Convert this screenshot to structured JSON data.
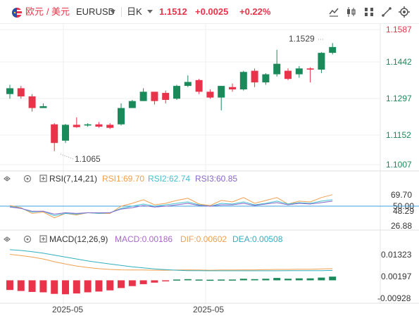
{
  "header": {
    "pair_name": "欧元",
    "pair_separator": "/",
    "pair_quote": "美元",
    "symbol": "EURUSD",
    "period": "日K",
    "last_price": "1.1512",
    "change": "+0.0025",
    "change_pct": "+0.22%",
    "tools": [
      "line-tool-icon",
      "candle-type-icon",
      "indicator-icon",
      "draw-tool-icon",
      "settings-icon"
    ]
  },
  "main_chart": {
    "price_labels": [
      "1.1587",
      "1.1442",
      "1.1297",
      "1.1152",
      "1.1007"
    ],
    "high_marker": "1.1529",
    "low_marker": "1.1065"
  },
  "rsi": {
    "label": "RSI(7,14,21)",
    "rsi1": "RSI1:69.70",
    "rsi2": "RSI2:62.74",
    "rsi3": "RSI3:60.85",
    "axis_labels": [
      "69.70",
      "50.00",
      "48.29",
      "26.88"
    ]
  },
  "macd": {
    "label": "MACD(12,26,9)",
    "macd": "MACD:0.00186",
    "dif": "DIF:0.00602",
    "dea": "DEA:0.00508",
    "axis_labels": [
      "0.01323",
      "0.00197",
      "-0.00928"
    ]
  },
  "date_labels": [
    "2025-05",
    "2025-05"
  ],
  "colors": {
    "up": "#1a8a5a",
    "down": "#e8334a",
    "rsi1": "#f0a050",
    "rsi2": "#40c0d0",
    "rsi3": "#8866cc",
    "macd": "#aa66cc",
    "dif": "#f0a050",
    "dea": "#30b0c0",
    "axis_text": "#1a8a5a"
  },
  "chart_data": {
    "type": "candlestick",
    "candles": [
      {
        "o": 1.131,
        "h": 1.135,
        "l": 1.129,
        "c": 1.1335
      },
      {
        "o": 1.1335,
        "h": 1.1345,
        "l": 1.129,
        "c": 1.13
      },
      {
        "o": 1.13,
        "h": 1.131,
        "l": 1.1235,
        "c": 1.125
      },
      {
        "o": 1.125,
        "h": 1.127,
        "l": 1.125,
        "c": 1.1258
      },
      {
        "o": 1.118,
        "h": 1.1185,
        "l": 1.1065,
        "c": 1.11
      },
      {
        "o": 1.111,
        "h": 1.1182,
        "l": 1.11,
        "c": 1.1178
      },
      {
        "o": 1.1178,
        "h": 1.121,
        "l": 1.1165,
        "c": 1.1168
      },
      {
        "o": 1.1175,
        "h": 1.1185,
        "l": 1.117,
        "c": 1.118
      },
      {
        "o": 1.118,
        "h": 1.119,
        "l": 1.1165,
        "c": 1.117
      },
      {
        "o": 1.1178,
        "h": 1.1185,
        "l": 1.116,
        "c": 1.1165
      },
      {
        "o": 1.118,
        "h": 1.127,
        "l": 1.1175,
        "c": 1.125
      },
      {
        "o": 1.125,
        "h": 1.1285,
        "l": 1.125,
        "c": 1.128
      },
      {
        "o": 1.128,
        "h": 1.1335,
        "l": 1.128,
        "c": 1.132
      },
      {
        "o": 1.132,
        "h": 1.132,
        "l": 1.1265,
        "c": 1.128
      },
      {
        "o": 1.1315,
        "h": 1.1325,
        "l": 1.127,
        "c": 1.1285
      },
      {
        "o": 1.129,
        "h": 1.135,
        "l": 1.1285,
        "c": 1.1345
      },
      {
        "o": 1.1345,
        "h": 1.139,
        "l": 1.134,
        "c": 1.1362
      },
      {
        "o": 1.137,
        "h": 1.1375,
        "l": 1.131,
        "c": 1.132
      },
      {
        "o": 1.132,
        "h": 1.133,
        "l": 1.129,
        "c": 1.1295
      },
      {
        "o": 1.1295,
        "h": 1.1345,
        "l": 1.124,
        "c": 1.1345
      },
      {
        "o": 1.134,
        "h": 1.1355,
        "l": 1.132,
        "c": 1.133
      },
      {
        "o": 1.133,
        "h": 1.141,
        "l": 1.1325,
        "c": 1.1405
      },
      {
        "o": 1.141,
        "h": 1.142,
        "l": 1.134,
        "c": 1.136
      },
      {
        "o": 1.136,
        "h": 1.14,
        "l": 1.135,
        "c": 1.1395
      },
      {
        "o": 1.1395,
        "h": 1.15,
        "l": 1.1385,
        "c": 1.144
      },
      {
        "o": 1.141,
        "h": 1.142,
        "l": 1.137,
        "c": 1.1375
      },
      {
        "o": 1.1395,
        "h": 1.143,
        "l": 1.138,
        "c": 1.142
      },
      {
        "o": 1.142,
        "h": 1.1425,
        "l": 1.136,
        "c": 1.1415
      },
      {
        "o": 1.1415,
        "h": 1.149,
        "l": 1.14,
        "c": 1.1487
      },
      {
        "o": 1.1487,
        "h": 1.1529,
        "l": 1.148,
        "c": 1.1512
      }
    ],
    "rsi1": [
      55,
      52,
      44,
      46,
      38,
      44,
      42,
      45,
      44,
      44,
      54,
      58,
      63,
      56,
      58,
      62,
      65,
      57,
      55,
      62,
      60,
      66,
      58,
      62,
      66,
      57,
      61,
      60,
      66,
      70
    ],
    "rsi2": [
      54,
      51,
      46,
      47,
      41,
      44,
      43,
      45,
      44,
      45,
      51,
      54,
      57,
      54,
      56,
      58,
      60,
      56,
      54,
      58,
      57,
      60,
      56,
      58,
      61,
      57,
      59,
      58,
      61,
      63
    ],
    "rsi3": [
      53,
      51,
      47,
      47,
      43,
      45,
      44,
      45,
      45,
      45,
      50,
      52,
      55,
      53,
      54,
      56,
      58,
      55,
      54,
      56,
      56,
      58,
      55,
      57,
      59,
      56,
      58,
      57,
      59,
      61
    ],
    "macd_hist": [
      -0.005,
      -0.0055,
      -0.006,
      -0.0062,
      -0.007,
      -0.0072,
      -0.0068,
      -0.0062,
      -0.0058,
      -0.0052,
      -0.004,
      -0.003,
      -0.002,
      -0.0012,
      -0.0004,
      0.0004,
      0.0006,
      0.0004,
      0.0003,
      0.0004,
      0.0004,
      0.0008,
      0.0006,
      0.0008,
      0.0012,
      0.0008,
      0.001,
      0.001,
      0.0014,
      0.0019
    ],
    "dif": [
      0.0134,
      0.0128,
      0.012,
      0.011,
      0.0096,
      0.0084,
      0.0074,
      0.0066,
      0.006,
      0.0056,
      0.0054,
      0.0053,
      0.0053,
      0.0052,
      0.0052,
      0.0053,
      0.0054,
      0.0053,
      0.0052,
      0.0053,
      0.0053,
      0.0054,
      0.0054,
      0.0055,
      0.0056,
      0.0056,
      0.0057,
      0.0057,
      0.0059,
      0.006
    ],
    "dea": [
      0.0158,
      0.0154,
      0.0148,
      0.014,
      0.013,
      0.012,
      0.011,
      0.01,
      0.0092,
      0.0084,
      0.0077,
      0.007,
      0.0064,
      0.0059,
      0.0055,
      0.0052,
      0.005,
      0.005,
      0.0049,
      0.0049,
      0.0049,
      0.0049,
      0.0049,
      0.0049,
      0.0049,
      0.005,
      0.005,
      0.005,
      0.005,
      0.0051
    ]
  }
}
